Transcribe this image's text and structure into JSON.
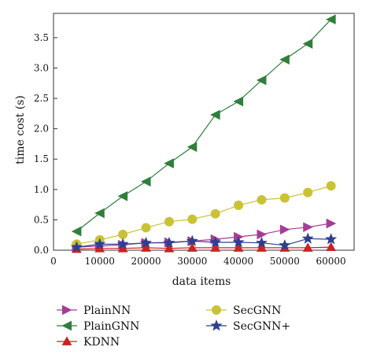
{
  "chart_data": {
    "type": "line",
    "xlabel": "data items",
    "ylabel": "time cost (s)",
    "xlim": [
      0,
      65000
    ],
    "ylim": [
      0,
      3.9
    ],
    "xticks": [
      0,
      10000,
      20000,
      30000,
      40000,
      50000,
      60000
    ],
    "xtick_labels": [
      "0",
      "10000",
      "20000",
      "30000",
      "40000",
      "50000",
      "60000"
    ],
    "yticks": [
      0,
      0.5,
      1.0,
      1.5,
      2.0,
      2.5,
      3.0,
      3.5
    ],
    "ytick_labels": [
      "0.0",
      "0.5",
      "1.0",
      "1.5",
      "2.0",
      "2.5",
      "3.0",
      "3.5"
    ],
    "grid": false,
    "legend_position": "bottom",
    "x": [
      5000,
      10000,
      15000,
      20000,
      25000,
      30000,
      35000,
      40000,
      45000,
      50000,
      55000,
      60000
    ],
    "series": [
      {
        "name": "PlainNN",
        "color": "#a63c98",
        "marker": "triangle-right",
        "values": [
          0.05,
          0.07,
          0.09,
          0.12,
          0.13,
          0.15,
          0.18,
          0.22,
          0.26,
          0.34,
          0.38,
          0.44
        ]
      },
      {
        "name": "PlainGNN",
        "color": "#2f7f3b",
        "marker": "triangle-left",
        "values": [
          0.31,
          0.61,
          0.89,
          1.13,
          1.43,
          1.7,
          2.23,
          2.45,
          2.8,
          3.14,
          3.4,
          3.8
        ]
      },
      {
        "name": "KDNN",
        "color": "#cc2222",
        "marker": "triangle-up",
        "values": [
          0.02,
          0.03,
          0.03,
          0.04,
          0.03,
          0.04,
          0.04,
          0.04,
          0.04,
          0.04,
          0.04,
          0.05
        ]
      },
      {
        "name": "SecGNN",
        "color": "#c9c234",
        "marker": "circle",
        "values": [
          0.1,
          0.17,
          0.26,
          0.37,
          0.47,
          0.51,
          0.6,
          0.74,
          0.83,
          0.86,
          0.95,
          1.06
        ]
      },
      {
        "name": "SecGNN+",
        "color": "#2e3f8f",
        "marker": "star",
        "values": [
          0.05,
          0.1,
          0.1,
          0.12,
          0.12,
          0.15,
          0.13,
          0.13,
          0.12,
          0.08,
          0.19,
          0.18
        ]
      }
    ]
  }
}
